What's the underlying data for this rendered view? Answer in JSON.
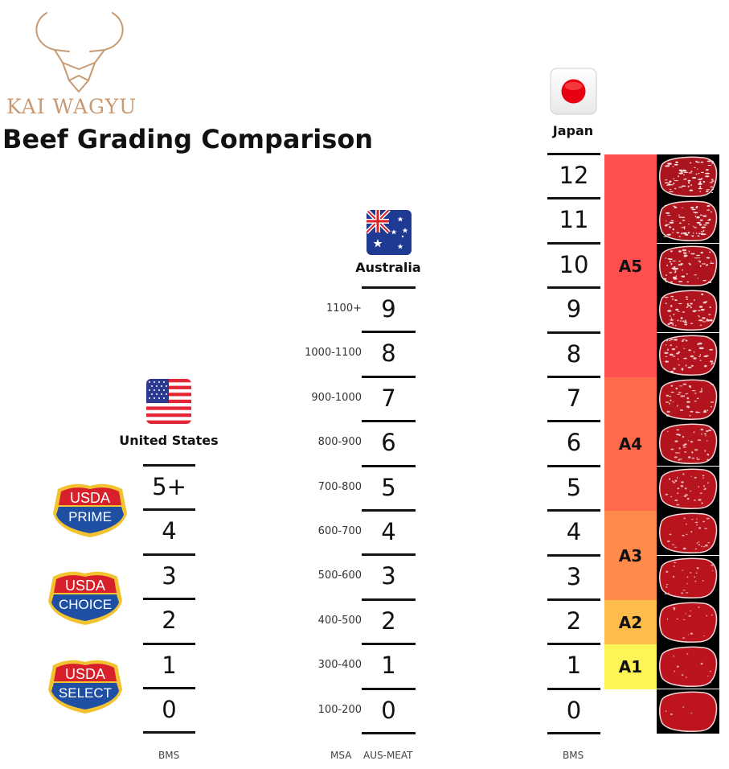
{
  "brand": {
    "name": "KAI WAGYU",
    "logo_icon": "bull-head-icon",
    "logo_color": "#c89a72"
  },
  "title": "Beef Grading Comparison",
  "countries": {
    "us": {
      "label": "United States",
      "flag_icon": "us-flag-icon",
      "grades": [
        "5+",
        "4",
        "3",
        "2",
        "1",
        "0"
      ],
      "footer": "BMS",
      "usda": [
        {
          "top": "USDA",
          "bottom": "PRIME"
        },
        {
          "top": "USDA",
          "bottom": "CHOICE"
        },
        {
          "top": "USDA",
          "bottom": "SELECT"
        }
      ]
    },
    "australia": {
      "label": "Australia",
      "flag_icon": "australia-flag-icon",
      "grades": [
        "9",
        "8",
        "7",
        "6",
        "5",
        "4",
        "3",
        "2",
        "1",
        "0"
      ],
      "msa": [
        "1100+",
        "1000-1100",
        "900-1000",
        "800-900",
        "700-800",
        "600-700",
        "500-600",
        "400-500",
        "300-400",
        "100-200"
      ],
      "footer_msa": "MSA",
      "footer_ausmeat": "AUS-MEAT"
    },
    "japan": {
      "label": "Japan",
      "flag_icon": "japan-flag-icon",
      "grades": [
        "12",
        "11",
        "10",
        "9",
        "8",
        "7",
        "6",
        "5",
        "4",
        "3",
        "2",
        "1",
        "0"
      ],
      "footer": "BMS",
      "bands": [
        {
          "label": "A5",
          "color": "#fe4e4e"
        },
        {
          "label": "A4",
          "color": "#ff6a4c"
        },
        {
          "label": "A3",
          "color": "#fe8a4c"
        },
        {
          "label": "A2",
          "color": "#febc4c"
        },
        {
          "label": "A1",
          "color": "#fdf455"
        }
      ]
    }
  }
}
